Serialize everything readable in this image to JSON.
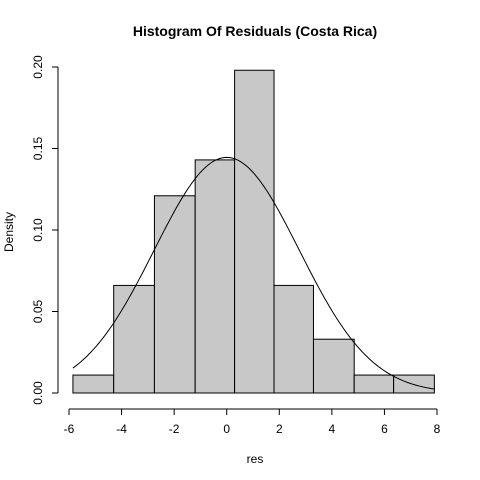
{
  "chart_data": {
    "type": "bar",
    "title": "Histogram Of Residuals (Costa Rica)",
    "xlabel": "res",
    "ylabel": "Density",
    "xlim": [
      -6,
      8
    ],
    "ylim": [
      0,
      0.2
    ],
    "x_ticks": [
      -6,
      -4,
      -2,
      0,
      2,
      4,
      6,
      8
    ],
    "y_ticks": [
      0.0,
      0.05,
      0.1,
      0.15,
      0.2
    ],
    "x_tick_labels": [
      "-6",
      "-4",
      "-2",
      "0",
      "2",
      "4",
      "6",
      "8"
    ],
    "y_tick_labels": [
      "0.00",
      "0.05",
      "0.10",
      "0.15",
      "0.20"
    ],
    "bins": [
      {
        "x0": -5.85,
        "x1": -4.3,
        "density": 0.011
      },
      {
        "x0": -4.3,
        "x1": -2.75,
        "density": 0.066
      },
      {
        "x0": -2.75,
        "x1": -1.2,
        "density": 0.121
      },
      {
        "x0": -1.2,
        "x1": 0.3,
        "density": 0.143
      },
      {
        "x0": 0.3,
        "x1": 1.8,
        "density": 0.198
      },
      {
        "x0": 1.8,
        "x1": 3.3,
        "density": 0.066
      },
      {
        "x0": 3.3,
        "x1": 4.85,
        "density": 0.033
      },
      {
        "x0": 4.85,
        "x1": 6.35,
        "density": 0.011
      },
      {
        "x0": 6.35,
        "x1": 7.9,
        "density": 0.011
      }
    ],
    "density_curve": {
      "distribution": "normal",
      "mean": 0.0,
      "sd": 2.76,
      "x_range": [
        -5.85,
        7.9
      ]
    },
    "grid": false,
    "legend": "none"
  }
}
